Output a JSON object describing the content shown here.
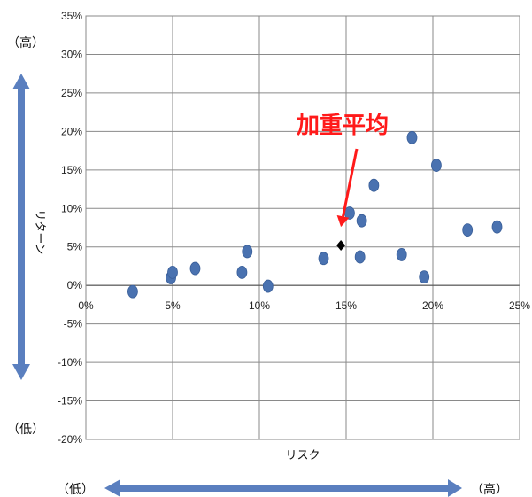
{
  "chart_data": {
    "type": "scatter",
    "xlabel": "リスク",
    "ylabel": "リターン",
    "xlim": [
      0,
      25
    ],
    "ylim": [
      -20,
      35
    ],
    "x_ticks": [
      "0%",
      "5%",
      "10%",
      "15%",
      "20%",
      "25%"
    ],
    "y_ticks": [
      "35%",
      "30%",
      "25%",
      "20%",
      "15%",
      "10%",
      "5%",
      "0%",
      "-5%",
      "-10%",
      "-15%",
      "-20%"
    ],
    "grid": true,
    "series": [
      {
        "marker": "ellipse",
        "color": "#4a72b0",
        "points": [
          {
            "x": 2.7,
            "y": -0.8
          },
          {
            "x": 4.9,
            "y": 1.0
          },
          {
            "x": 5.0,
            "y": 1.7
          },
          {
            "x": 6.3,
            "y": 2.2
          },
          {
            "x": 9.0,
            "y": 1.7
          },
          {
            "x": 9.3,
            "y": 4.4
          },
          {
            "x": 10.5,
            "y": -0.1
          },
          {
            "x": 13.7,
            "y": 3.5
          },
          {
            "x": 15.2,
            "y": 9.4
          },
          {
            "x": 15.8,
            "y": 3.7
          },
          {
            "x": 15.9,
            "y": 8.4
          },
          {
            "x": 16.6,
            "y": 13.0
          },
          {
            "x": 18.2,
            "y": 4.0
          },
          {
            "x": 18.8,
            "y": 19.2
          },
          {
            "x": 19.5,
            "y": 1.1
          },
          {
            "x": 20.2,
            "y": 15.6
          },
          {
            "x": 22.0,
            "y": 7.2
          },
          {
            "x": 23.7,
            "y": 7.6
          }
        ]
      },
      {
        "marker": "diamond",
        "color": "#000000",
        "points": [
          {
            "x": 14.7,
            "y": 5.2
          }
        ]
      }
    ],
    "annotation": {
      "text": "加重平均",
      "target": {
        "x": 14.7,
        "y": 7.6
      },
      "color": "#ff1a1a"
    }
  },
  "labels": {
    "return_high": "（高）",
    "return_low": "（低）",
    "risk_low": "（低）",
    "risk_high": "（高）"
  },
  "colors": {
    "arrow": "#5a7fbf"
  }
}
